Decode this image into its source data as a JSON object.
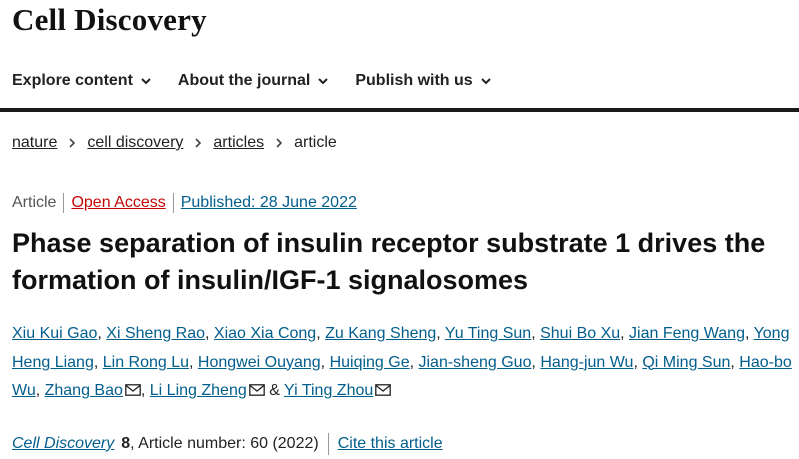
{
  "header": {
    "brand": "Cell Discovery"
  },
  "nav": {
    "items": [
      {
        "label": "Explore content"
      },
      {
        "label": "About the journal"
      },
      {
        "label": "Publish with us"
      }
    ]
  },
  "breadcrumb": {
    "items": [
      "nature",
      "cell discovery",
      "articles"
    ],
    "current": "article"
  },
  "article": {
    "type": "Article",
    "access": "Open Access",
    "published": "Published: 28 June 2022",
    "title": "Phase separation of insulin receptor substrate 1 drives the formation of insulin/IGF-1 signalosomes",
    "authors": [
      "Xiu Kui Gao",
      "Xi Sheng Rao",
      "Xiao Xia Cong",
      "Zu Kang Sheng",
      "Yu Ting Sun",
      "Shui Bo Xu",
      "Jian Feng Wang",
      "Yong Heng Liang",
      "Lin Rong Lu",
      "Hongwei Ouyang",
      "Huiqing Ge",
      "Jian-sheng Guo",
      "Hang-jun Wu",
      "Qi Ming Sun",
      "Hao-bo Wu",
      "Zhang Bao",
      "Li Ling Zheng",
      "Yi Ting Zhou"
    ],
    "author_separator": ",",
    "final_separator": "&",
    "journal": "Cell Discovery",
    "volume": "8",
    "article_number": ", Article number: 60 (2022)",
    "cite_label": "Cite this article"
  },
  "colors": {
    "link": "#025e8d",
    "open_access": "#c40606",
    "rule": "#1a1a1a"
  },
  "icons": {
    "nav_chevron": "chevron-down-icon",
    "breadcrumb_separator": "chevron-right-icon",
    "email": "email-icon"
  }
}
